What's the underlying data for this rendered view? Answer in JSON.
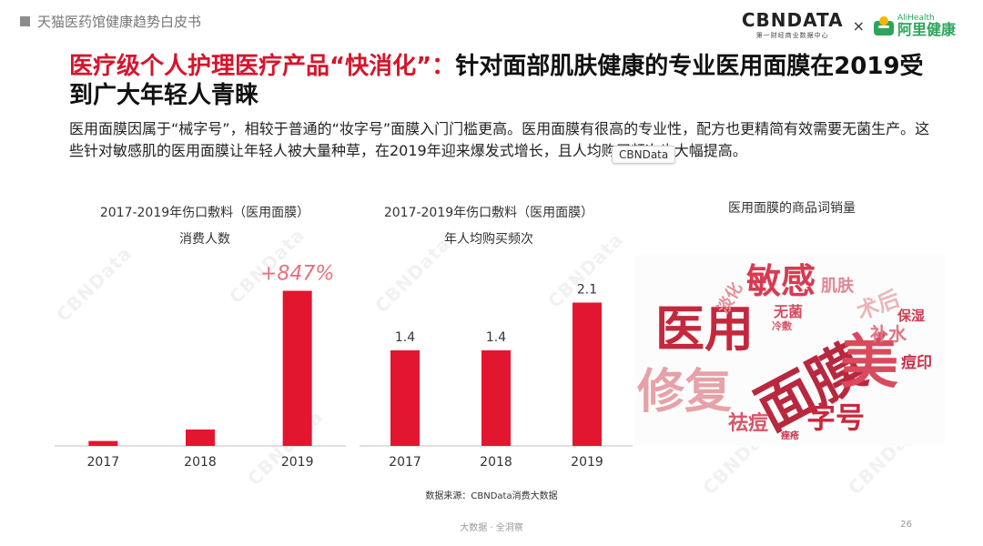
{
  "header": {
    "tag": "天猫医药馆健康趋势白皮书"
  },
  "logos": {
    "cbn_main": "CBNDATA",
    "cbn_sub": "第一财经商业数据中心",
    "times": "×",
    "ali_en": "AliHealth",
    "ali_cn": "阿里健康"
  },
  "title": {
    "highlight": "医疗级个人护理医疗产品“快消化”：",
    "rest": "针对面部肌肤健康的专业医用面膜在2019受到广大年轻人青睐"
  },
  "description": "医用面膜因属于“械字号”，相较于普通的“妆字号”面膜入门门槛更高。医用面膜有很高的专业性，配方也更精简有效需要无菌生产。这些针对敏感肌的医用面膜让年轻人被大量种草，在2019年迎来爆发式增长，且人均购买频次也大幅提高。",
  "tooltip": "CBNData",
  "watermark": "CBNData",
  "chart_data": [
    {
      "type": "bar",
      "title": "2017-2019年伤口敷料（医用面膜）",
      "subtitle": "消费人数",
      "categories": [
        "2017",
        "2018",
        "2019"
      ],
      "values": [
        0.3,
        1.0,
        9.47
      ],
      "annotation": "+847%",
      "ylim": [
        0,
        10
      ],
      "color": "#e3162f"
    },
    {
      "type": "bar",
      "title": "2017-2019年伤口敷料（医用面膜）",
      "subtitle": "年人均购买频次",
      "categories": [
        "2017",
        "2018",
        "2019"
      ],
      "values": [
        1.4,
        1.4,
        2.1
      ],
      "data_labels": [
        "1.4",
        "1.4",
        "2.1"
      ],
      "ylim": [
        0,
        2.4
      ],
      "color": "#e3162f"
    }
  ],
  "wordcloud": {
    "title": "医用面膜的商品词销量",
    "words": [
      {
        "text": "医用",
        "color": "#c4283c"
      },
      {
        "text": "面膜",
        "color": "#b8283e"
      },
      {
        "text": "修复",
        "color": "#e7a1a8"
      },
      {
        "text": "美",
        "color": "#d94a5d"
      },
      {
        "text": "敏感",
        "color": "#d93a52"
      },
      {
        "text": "字号",
        "color": "#c8283c"
      },
      {
        "text": "祛痘",
        "color": "#d6566a"
      },
      {
        "text": "肌肤",
        "color": "#e28592"
      },
      {
        "text": "淡化",
        "color": "#e58f9a"
      },
      {
        "text": "无菌",
        "color": "#d44d62"
      },
      {
        "text": "冷敷",
        "color": "#d65a6d"
      },
      {
        "text": "术后",
        "color": "#e9b6bc"
      },
      {
        "text": "保湿",
        "color": "#cc4055"
      },
      {
        "text": "补水",
        "color": "#e07585"
      },
      {
        "text": "痘印",
        "color": "#c8304a"
      },
      {
        "text": "痤疮",
        "color": "#c8304a"
      }
    ]
  },
  "source": "数据来源：CBNData消费大数据",
  "footer": "大数据 · 全洞察",
  "page_number": "26"
}
